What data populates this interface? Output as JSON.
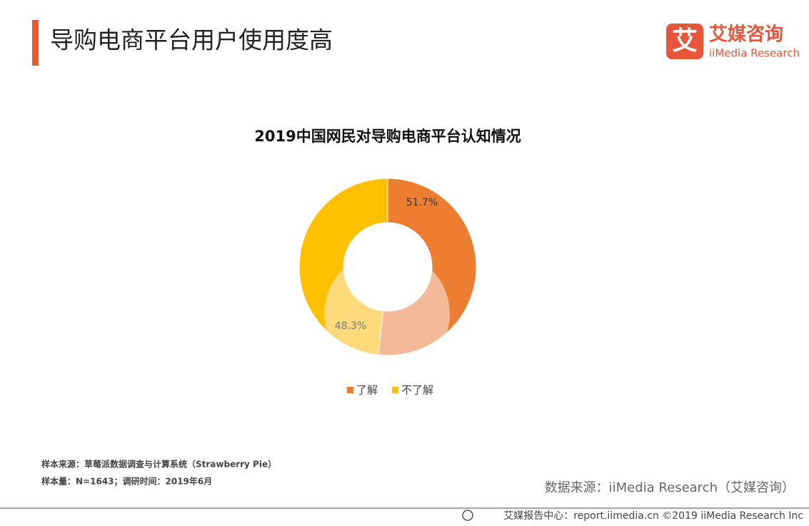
{
  "header": {
    "title": "导购电商平台用户使用度高"
  },
  "logo": {
    "icon": "艾",
    "name": "艾媒咨询",
    "sub": "iiMedia Research"
  },
  "chart_data": {
    "type": "donut",
    "title": "2019中国网民对导购电商平台认知情况",
    "categories": [
      "了解",
      "不了解"
    ],
    "values": [
      51.7,
      48.3
    ],
    "value_labels": [
      "51.7%",
      "48.3%"
    ],
    "colors": [
      "#ED7D31",
      "#FFC000"
    ],
    "highlight_colors": [
      "#F4B996",
      "#FFDA7A"
    ],
    "legend": "bottom"
  },
  "notes": [
    "样本来源：草莓派数据调查与计算系统（Strawberry Pie）",
    "样本量：N=1643；调研时间：2019年6月"
  ],
  "source": "数据来源：iiMedia Research（艾媒咨询）",
  "footer": "艾媒报告中心：report.iimedia.cn  ©2019  iiMedia Research  Inc"
}
